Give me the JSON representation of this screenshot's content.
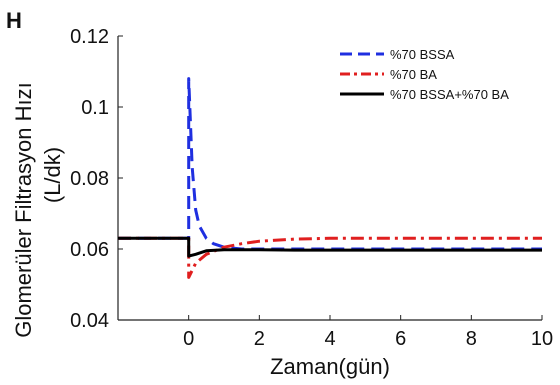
{
  "panel_label": "H",
  "chart_data": {
    "type": "line",
    "xlabel": "Zaman(gün)",
    "ylabel_lines": [
      "Glomerüler Filtrasyon Hızı",
      "(L/dk)"
    ],
    "xlim": [
      -2,
      10
    ],
    "ylim": [
      0.04,
      0.12
    ],
    "xticks": [
      0,
      2,
      4,
      6,
      8,
      10
    ],
    "xtick_labels": [
      "0",
      "2",
      "4",
      "6",
      "8",
      "10"
    ],
    "yticks": [
      0.04,
      0.06,
      0.08,
      0.1,
      0.12
    ],
    "ytick_labels": [
      "0.04",
      "0.06",
      "0.08",
      "0.1",
      "0.12"
    ],
    "legend_position": "top-right",
    "series": [
      {
        "name": "%70 BSSA",
        "color": "#1f2fe0",
        "style": "dashed",
        "x": [
          -2,
          0,
          0,
          0.1,
          0.2,
          0.3,
          0.5,
          0.7,
          1.0,
          1.5,
          2.0,
          3.0,
          5.0,
          10.0
        ],
        "y": [
          0.063,
          0.063,
          0.108,
          0.083,
          0.071,
          0.0665,
          0.063,
          0.0615,
          0.0605,
          0.06,
          0.06,
          0.06,
          0.06,
          0.06
        ]
      },
      {
        "name": "%70 BA",
        "color": "#e01f1f",
        "style": "dashdot",
        "x": [
          -2,
          0,
          0,
          0.2,
          0.5,
          1.0,
          1.5,
          2.0,
          3.0,
          4.0,
          6.0,
          10.0
        ],
        "y": [
          0.063,
          0.063,
          0.052,
          0.056,
          0.0585,
          0.0605,
          0.0615,
          0.0622,
          0.0628,
          0.063,
          0.063,
          0.063
        ]
      },
      {
        "name": "%70 BSSA+%70 BA",
        "color": "#000000",
        "style": "solid",
        "x": [
          -2,
          0,
          0,
          0.2,
          0.5,
          1.0,
          2.0,
          3.0,
          5.0,
          10.0
        ],
        "y": [
          0.063,
          0.063,
          0.058,
          0.0585,
          0.0595,
          0.0598,
          0.0598,
          0.0597,
          0.0597,
          0.0597
        ]
      }
    ]
  }
}
